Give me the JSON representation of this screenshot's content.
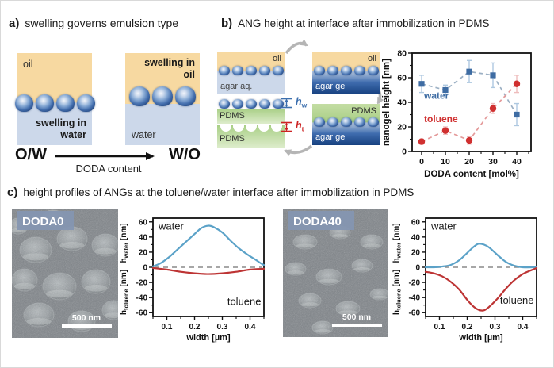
{
  "panel_a": {
    "label": "a)",
    "title": "swelling governs emulsion type",
    "left_box": {
      "oil": "oil",
      "swelling": "swelling in water"
    },
    "right_box": {
      "swelling": "swelling in oil",
      "water": "water"
    },
    "flow": {
      "left": "O/W",
      "right": "W/O",
      "caption": "DODA content"
    }
  },
  "panel_b": {
    "label": "b)",
    "title": "ANG height at interface after immobilization in PDMS",
    "box_oil_aq": {
      "top": "oil",
      "bottom": "agar aq."
    },
    "box_oil_gel": {
      "top": "oil",
      "bottom": "agar gel"
    },
    "box_pdms_gel": {
      "top": "PDMS",
      "bottom": "agar gel"
    },
    "box_pdms_replica": {
      "pdms_top": "PDMS",
      "pdms_bottom": "PDMS",
      "hw": {
        "base": "h",
        "sub": "w"
      },
      "ht": {
        "base": "h",
        "sub": "t"
      }
    }
  },
  "panel_c": {
    "label": "c)",
    "title": "height profiles of ANGs at the toluene/water interface after immobilization in PDMS",
    "sem_doda0": {
      "badge": "DODA0",
      "scale_bar": "500 nm"
    },
    "sem_doda40": {
      "badge": "DODA40",
      "scale_bar": "500 nm"
    }
  },
  "colors": {
    "oil": "#f7d9a1",
    "water_light": "#ccd8ea",
    "agar_gel_dark": "#16407f",
    "pdms_green": "#a9cf86",
    "water_series": "#3e6ca3",
    "toluene_series": "#d03030",
    "profile_water": "#5ba2c8",
    "profile_toluene": "#bd3434",
    "badge": "#8496b2"
  },
  "chart_data": [
    {
      "type": "scatter",
      "title": "nanogel height at interface vs DODA content",
      "xlabel": "DODA content [mol%]",
      "ylabel": "nanogel height [nm]",
      "xlim": [
        -4,
        46
      ],
      "ylim": [
        0,
        80
      ],
      "xticks": [
        {
          "v": 0,
          "label": "0"
        },
        {
          "v": 10,
          "label": "10"
        },
        {
          "v": 20,
          "label": "20"
        },
        {
          "v": 30,
          "label": "30"
        },
        {
          "v": 40,
          "label": "40"
        }
      ],
      "xminor": [
        5,
        15,
        25,
        35,
        45
      ],
      "yticks": [
        {
          "v": 0,
          "label": "0"
        },
        {
          "v": 20,
          "label": "20"
        },
        {
          "v": 40,
          "label": "40"
        },
        {
          "v": 60,
          "label": "60"
        },
        {
          "v": 80,
          "label": "80"
        }
      ],
      "yminor": [
        10,
        30,
        50,
        70
      ],
      "line_style": "dashed",
      "legend_position": "inline",
      "series": [
        {
          "name": "water",
          "marker": "square",
          "color": "#3e6ca3",
          "line_color": "#9cb0c4",
          "err_color": "#aec8e0",
          "x": [
            0,
            10,
            20,
            30,
            40
          ],
          "y": [
            55,
            50,
            65,
            62,
            30
          ],
          "yerr": [
            7,
            4,
            9,
            10,
            9
          ],
          "label_x": 1,
          "label_y": 43
        },
        {
          "name": "toluene",
          "marker": "circle",
          "color": "#d03030",
          "line_color": "#e49a9a",
          "err_color": "#eebcbc",
          "x": [
            0,
            10,
            20,
            30,
            40
          ],
          "y": [
            8,
            17,
            9,
            35,
            55
          ],
          "yerr": [
            2,
            3,
            3,
            4,
            7
          ],
          "label_x": 1,
          "label_y": 24
        }
      ]
    },
    {
      "type": "profile",
      "sample": "DODA0",
      "xlabel": "width [µm]",
      "ylabel_top": {
        "pre": "h",
        "sub": "water",
        "post": " [nm]"
      },
      "ylabel_bottom": {
        "pre": "h",
        "sub": "toluene",
        "post": " [nm]"
      },
      "xlim": [
        0.05,
        0.45
      ],
      "ylim": [
        -65,
        65
      ],
      "xticks": [
        {
          "v": 0.1,
          "label": "0.1"
        },
        {
          "v": 0.2,
          "label": "0.2"
        },
        {
          "v": 0.3,
          "label": "0.3"
        },
        {
          "v": 0.4,
          "label": "0.4"
        }
      ],
      "xminor": [
        0.05,
        0.15,
        0.25,
        0.35,
        0.45
      ],
      "yticks": [
        {
          "v": -60,
          "label": "-60"
        },
        {
          "v": -40,
          "label": "-40"
        },
        {
          "v": -20,
          "label": "-20"
        },
        {
          "v": 0,
          "label": "0"
        },
        {
          "v": 20,
          "label": "20"
        },
        {
          "v": 40,
          "label": "40"
        },
        {
          "v": 60,
          "label": "60"
        }
      ],
      "yminor": [
        -50,
        -30,
        -10,
        10,
        30,
        50
      ],
      "zero_line": true,
      "annotations": [
        {
          "text": "water",
          "x": 0.07,
          "y": 50,
          "anchor": "start",
          "color": "#1a1a1a"
        },
        {
          "text": "toluene",
          "x": 0.44,
          "y": -50,
          "anchor": "end",
          "color": "#1a1a1a"
        }
      ],
      "series": [
        {
          "name": "water",
          "color": "#5ba2c8",
          "x": [
            0.05,
            0.08,
            0.11,
            0.14,
            0.17,
            0.2,
            0.225,
            0.25,
            0.27,
            0.3,
            0.33,
            0.36,
            0.39,
            0.42,
            0.44,
            0.45
          ],
          "y": [
            1,
            6,
            14,
            24,
            34,
            44,
            52,
            55,
            53,
            46,
            35,
            25,
            17,
            10,
            5,
            3
          ]
        },
        {
          "name": "toluene",
          "color": "#bd3434",
          "x": [
            0.05,
            0.1,
            0.15,
            0.2,
            0.25,
            0.3,
            0.35,
            0.4,
            0.45
          ],
          "y": [
            -1,
            -3,
            -6,
            -8,
            -9,
            -8,
            -6,
            -3,
            -2
          ]
        }
      ]
    },
    {
      "type": "profile",
      "sample": "DODA40",
      "xlabel": "width [µm]",
      "ylabel_top": {
        "pre": "h",
        "sub": "water",
        "post": " [nm]"
      },
      "ylabel_bottom": {
        "pre": "h",
        "sub": "toluene",
        "post": " [nm]"
      },
      "xlim": [
        0.05,
        0.45
      ],
      "ylim": [
        -65,
        65
      ],
      "xticks": [
        {
          "v": 0.1,
          "label": "0.1"
        },
        {
          "v": 0.2,
          "label": "0.2"
        },
        {
          "v": 0.3,
          "label": "0.3"
        },
        {
          "v": 0.4,
          "label": "0.4"
        }
      ],
      "xminor": [
        0.05,
        0.15,
        0.25,
        0.35,
        0.45
      ],
      "yticks": [
        {
          "v": -60,
          "label": "-60"
        },
        {
          "v": -40,
          "label": "-40"
        },
        {
          "v": -20,
          "label": "-20"
        },
        {
          "v": 0,
          "label": "0"
        },
        {
          "v": 20,
          "label": "20"
        },
        {
          "v": 40,
          "label": "40"
        },
        {
          "v": 60,
          "label": "60"
        }
      ],
      "yminor": [
        -50,
        -30,
        -10,
        10,
        30,
        50
      ],
      "zero_line": true,
      "annotations": [
        {
          "text": "water",
          "x": 0.07,
          "y": 50,
          "anchor": "start",
          "color": "#1a1a1a"
        },
        {
          "text": "toluene",
          "x": 0.44,
          "y": -48,
          "anchor": "end",
          "color": "#1a1a1a"
        }
      ],
      "series": [
        {
          "name": "water",
          "color": "#5ba2c8",
          "x": [
            0.05,
            0.08,
            0.11,
            0.14,
            0.17,
            0.2,
            0.22,
            0.24,
            0.26,
            0.28,
            0.31,
            0.34,
            0.37,
            0.4,
            0.45
          ],
          "y": [
            0,
            0,
            1,
            3,
            9,
            19,
            26,
            31,
            30,
            26,
            16,
            7,
            2,
            0,
            0
          ]
        },
        {
          "name": "toluene",
          "color": "#bd3434",
          "x": [
            0.05,
            0.08,
            0.11,
            0.14,
            0.17,
            0.2,
            0.22,
            0.24,
            0.26,
            0.28,
            0.31,
            0.34,
            0.37,
            0.4,
            0.43,
            0.45
          ],
          "y": [
            -6,
            -8,
            -12,
            -19,
            -29,
            -43,
            -51,
            -56,
            -57,
            -52,
            -41,
            -28,
            -17,
            -9,
            -4,
            -1
          ]
        }
      ]
    }
  ]
}
